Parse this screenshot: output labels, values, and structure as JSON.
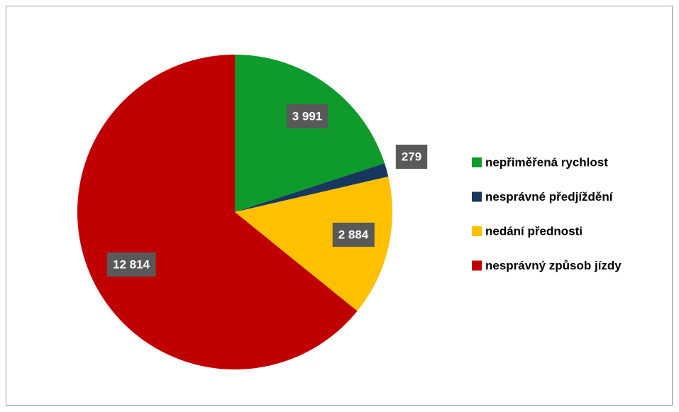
{
  "chart_data": {
    "type": "pie",
    "categories": [
      "nepřiměřená rychlost",
      "nesprávné předjíždění",
      "nedání přednosti",
      "nesprávný způsob jízdy"
    ],
    "values": [
      3991,
      279,
      2884,
      12814
    ],
    "value_labels": [
      "3 991",
      "279",
      "2 884",
      "12 814"
    ],
    "colors": [
      "#0e9b2c",
      "#17375e",
      "#ffc000",
      "#c00000"
    ],
    "legend": "right"
  }
}
